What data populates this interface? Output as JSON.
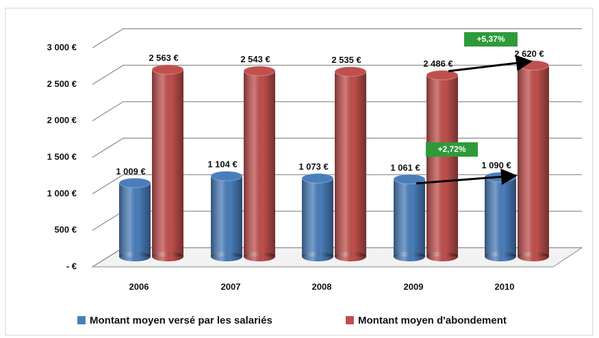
{
  "chart_data": {
    "type": "bar3d",
    "categories": [
      "2006",
      "2007",
      "2008",
      "2009",
      "2010"
    ],
    "series": [
      {
        "name": "Montant moyen versé par les salariés",
        "color": "#4a7ebb",
        "values": [
          1009,
          1104,
          1073,
          1061,
          1090
        ],
        "value_labels": [
          "1 009 €",
          "1 104 €",
          "1 073 €",
          "1 061 €",
          "1 090 €"
        ]
      },
      {
        "name": "Montant moyen d'abondement",
        "color": "#c0504d",
        "values": [
          2563,
          2543,
          2535,
          2486,
          2620
        ],
        "value_labels": [
          "2 563 €",
          "2 543 €",
          "2 535 €",
          "2 486 €",
          "2 620 €"
        ]
      }
    ],
    "ylim": [
      0,
      3000
    ],
    "yticks": [
      {
        "value": 0,
        "label": "-   €"
      },
      {
        "value": 500,
        "label": "500 €"
      },
      {
        "value": 1000,
        "label": "1 000 €"
      },
      {
        "value": 1500,
        "label": "1 500 €"
      },
      {
        "value": 2000,
        "label": "2 000 €"
      },
      {
        "value": 2500,
        "label": "2 500 €"
      },
      {
        "value": 3000,
        "label": "3 000 €"
      }
    ],
    "grid": true,
    "annotations": [
      "+5,37%",
      "+2,72%"
    ]
  }
}
